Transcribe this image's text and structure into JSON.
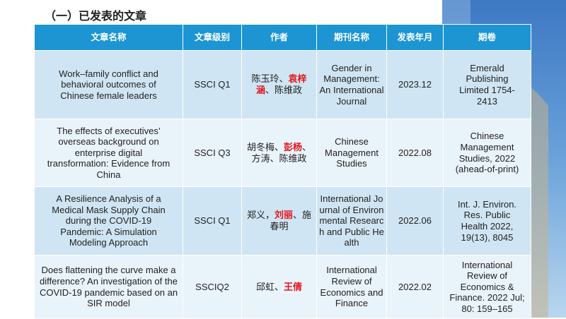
{
  "heading": "（一）已发表的文章",
  "columns": [
    "文章名称",
    "文章级别",
    "作者",
    "期刊名称",
    "发表年月",
    "期卷"
  ],
  "rows": [
    {
      "title": "Work–family conflict and behavioral outcomes of Chinese female leaders",
      "level": "SSCI Q1",
      "authors_pre": "陈玉玲、",
      "authors_hl": "袁梓涵",
      "authors_post": "、陈维政",
      "journal": "Gender in Management: An International Journal",
      "date": "2023.12",
      "volume": "Emerald Publishing Limited 1754-2413"
    },
    {
      "title": "The effects of executives’ overseas background on enterprise digital transformation: Evidence from China",
      "level": "SSCI Q3",
      "authors_pre": "胡冬梅、",
      "authors_hl": "彭杨",
      "authors_post": "、方涛、陈维政",
      "journal": "Chinese Management Studies",
      "date": "2022.08",
      "volume": "Chinese Management Studies, 2022 (ahead-of-print)"
    },
    {
      "title": "A Resilience Analysis of a Medical Mask Supply Chain during the COVID-19 Pandemic: A Simulation Modeling Approach",
      "level": "SSCI Q1",
      "authors_pre": "郑义，",
      "authors_hl": "刘丽",
      "authors_post": "、施春明",
      "journal": "International Journal of Environmental Research and Public Health",
      "date": "2022.06",
      "volume": "Int. J. Environ. Res. Public Health 2022, 19(13), 8045"
    },
    {
      "title": "Does flattening the curve make a difference? An investigation of the COVID-19 pandemic based on an SIR model",
      "level": "SSCIQ2",
      "authors_pre": "邱虹、",
      "authors_hl": "王倩",
      "authors_post": "",
      "journal": "International Review of Economics and Finance",
      "date": "2022.02",
      "volume": "International Review of Economics & Finance. 2022 Jul; 80: 159–165"
    }
  ]
}
